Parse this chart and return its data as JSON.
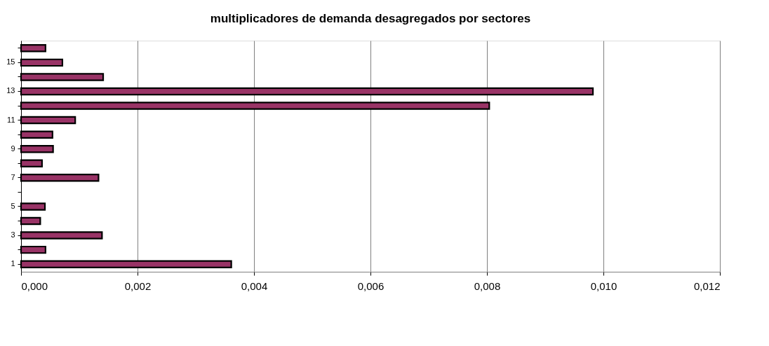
{
  "chart_data": {
    "type": "bar",
    "orientation": "horizontal",
    "title": "multiplicadores de demanda desagregados por sectores",
    "categories": [
      null,
      "15",
      null,
      "13",
      null,
      "11",
      null,
      "9",
      null,
      "7",
      null,
      "5",
      null,
      "3",
      null,
      "1"
    ],
    "values": [
      0.00042,
      0.00071,
      0.00141,
      0.00982,
      0.00804,
      0.00093,
      0.00054,
      0.00055,
      0.00036,
      0.00133,
      null,
      0.00041,
      0.00033,
      0.00139,
      0.00042,
      0.00361
    ],
    "color": "#993366",
    "xlim": [
      0,
      0.012
    ],
    "xticks": [
      {
        "value": 0,
        "label": "0,000"
      },
      {
        "value": 0.002,
        "label": "0,002"
      },
      {
        "value": 0.004,
        "label": "0,004"
      },
      {
        "value": 0.006,
        "label": "0,006"
      },
      {
        "value": 0.008,
        "label": "0,008"
      },
      {
        "value": 0.01,
        "label": "0,010"
      },
      {
        "value": 0.012,
        "label": "0,012"
      }
    ],
    "grid": "x"
  }
}
